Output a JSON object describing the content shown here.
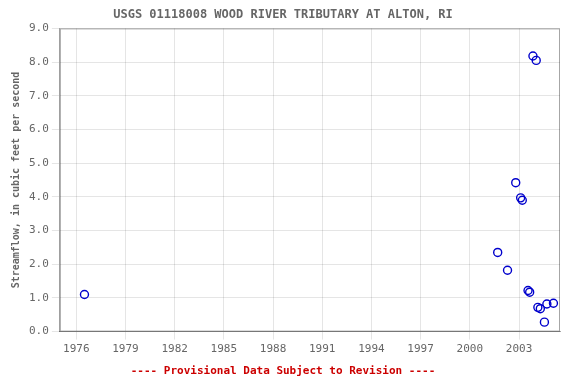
{
  "chart_data": {
    "type": "scatter",
    "title": "USGS 01118008 WOOD RIVER TRIBUTARY AT ALTON, RI",
    "ylabel": "Streamflow, in cubic feet per second",
    "x": [
      1976.5,
      2001.7,
      2002.3,
      2002.8,
      2003.1,
      2003.2,
      2003.55,
      2003.65,
      2003.85,
      2004.05,
      2004.15,
      2004.3,
      2004.55,
      2004.7,
      2005.1
    ],
    "values": [
      1.1,
      2.35,
      1.82,
      4.42,
      3.97,
      3.9,
      1.22,
      1.17,
      8.18,
      8.05,
      0.72,
      0.68,
      0.28,
      0.82,
      0.84
    ],
    "color": "#0000cc",
    "marker": "circle",
    "xlim": [
      1975.0,
      2005.5
    ],
    "ylim": [
      0.0,
      9.0
    ],
    "xticks": [
      1976,
      1979,
      1982,
      1985,
      1988,
      1991,
      1994,
      1997,
      2000,
      2003
    ],
    "yticks": [
      {
        "value": 0.0,
        "label": "0.0"
      },
      {
        "value": 1.0,
        "label": "1.0"
      },
      {
        "value": 2.0,
        "label": "2.0"
      },
      {
        "value": 3.0,
        "label": "3.0"
      },
      {
        "value": 4.0,
        "label": "4.0"
      },
      {
        "value": 5.0,
        "label": "5.0"
      },
      {
        "value": 6.0,
        "label": "6.0"
      },
      {
        "value": 7.0,
        "label": "7.0"
      },
      {
        "value": 8.0,
        "label": "8.0"
      },
      {
        "value": 9.0,
        "label": "9.0"
      }
    ],
    "grid": true,
    "annotations": [
      {
        "text": "---- Provisional Data Subject to Revision ----",
        "color": "#cc0000"
      }
    ]
  }
}
